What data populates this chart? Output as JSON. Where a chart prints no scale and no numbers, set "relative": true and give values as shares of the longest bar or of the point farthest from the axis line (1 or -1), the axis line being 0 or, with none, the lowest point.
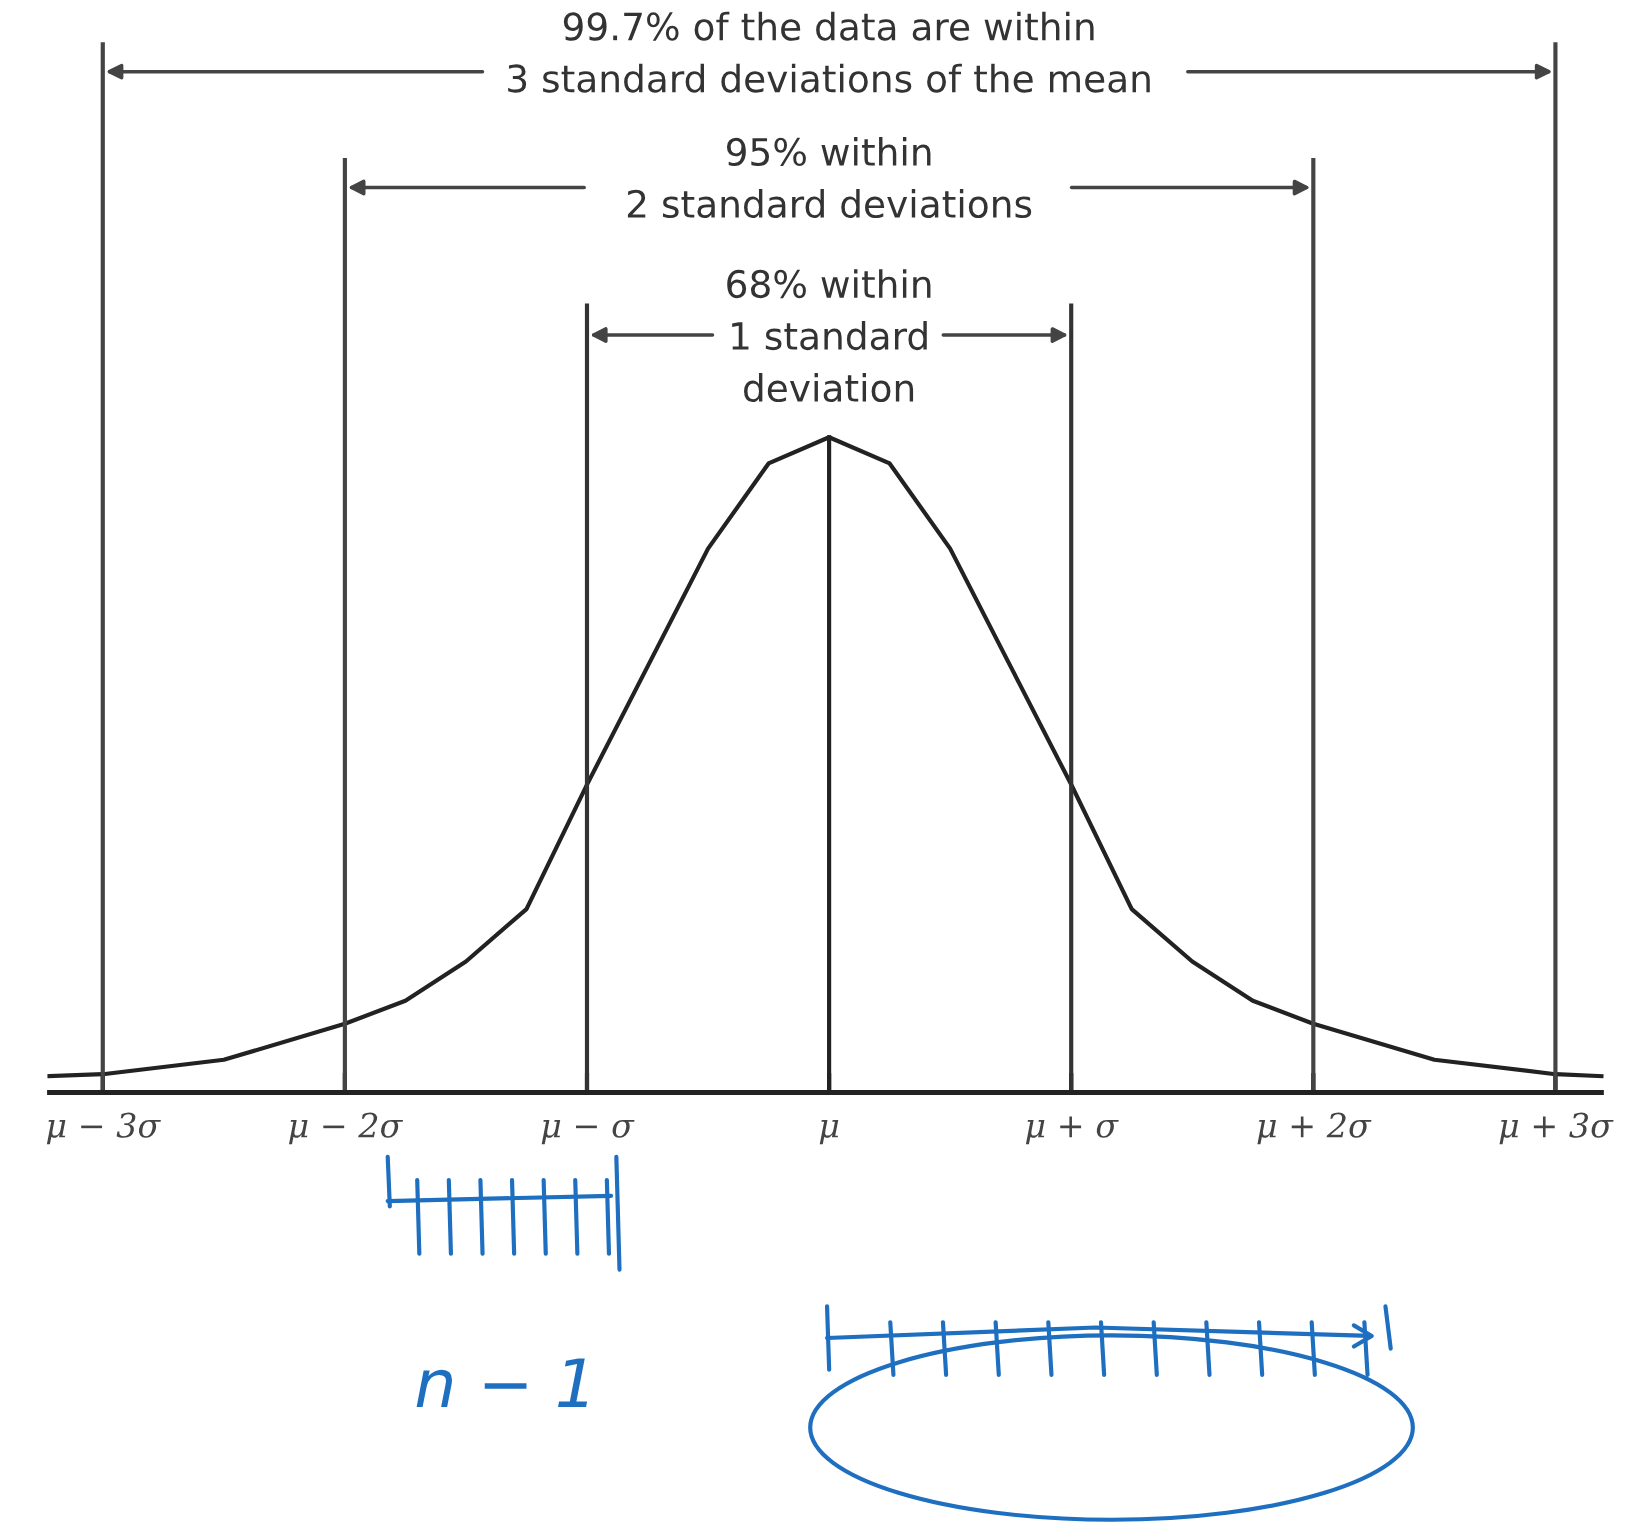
{
  "chart_data": {
    "type": "line",
    "relative": true,
    "x": [
      -3.22,
      -3,
      -2.5,
      -2,
      -1.75,
      -1.5,
      -1.25,
      -1,
      -0.75,
      -0.5,
      -0.25,
      0,
      0.25,
      0.5,
      0.75,
      1,
      1.25,
      1.5,
      1.75,
      2,
      2.5,
      3,
      3.19
    ],
    "series": [
      {
        "color": "#222222",
        "values": [
          0.025,
          0.028,
          0.05,
          0.105,
          0.14,
          0.2,
          0.28,
          0.47,
          0.65,
          0.83,
          0.96,
          1,
          0.96,
          0.83,
          0.65,
          0.47,
          0.28,
          0.2,
          0.14,
          0.105,
          0.05,
          0.028,
          0.025
        ]
      }
    ],
    "xlim": [
      -3.22,
      3.19
    ],
    "xticks": [
      {
        "value": -3,
        "label": "μ − 3σ"
      },
      {
        "value": -2,
        "label": "μ − 2σ"
      },
      {
        "value": -1,
        "label": "μ − σ"
      },
      {
        "value": 0,
        "label": "μ"
      },
      {
        "value": 1,
        "label": "μ + σ"
      },
      {
        "value": 2,
        "label": "μ + 2σ"
      },
      {
        "value": 3,
        "label": "μ + 3σ"
      }
    ],
    "tick_labels": "x",
    "marker": "none",
    "line_style": "solid",
    "ref_lines": [
      {
        "axis": "x",
        "value": -3,
        "color": "#444444"
      },
      {
        "axis": "x",
        "value": -2,
        "color": "#444444"
      },
      {
        "axis": "x",
        "value": -1,
        "color": "#333333"
      },
      {
        "axis": "x",
        "value": 0,
        "color": "#222222"
      },
      {
        "axis": "x",
        "value": 1,
        "color": "#333333"
      },
      {
        "axis": "x",
        "value": 2,
        "color": "#444444"
      },
      {
        "axis": "x",
        "value": 3,
        "color": "#444444"
      }
    ],
    "annotations": [
      "99.7% of the data are within\n3 standard deviations of the mean",
      "95% within\n2 standard deviations",
      "68% within\n1 standard\ndeviation",
      "n − 1"
    ]
  }
}
